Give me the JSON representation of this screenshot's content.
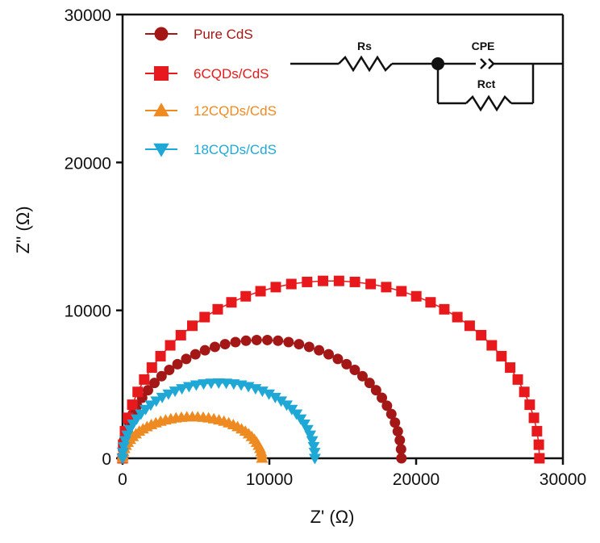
{
  "chart_data": {
    "type": "scatter",
    "title": "",
    "xlabel": "Z' (Ω)",
    "ylabel": "Z'' (Ω)",
    "xlim": [
      0,
      30000
    ],
    "ylim": [
      0,
      30000
    ],
    "x_ticks": [
      "0",
      "10000",
      "20000",
      "30000"
    ],
    "y_ticks": [
      "0",
      "10000",
      "20000",
      "30000"
    ],
    "grid": false,
    "legend_position": "top-left",
    "series": [
      {
        "name": "Pure CdS",
        "color": "#a31717",
        "marker": "circle",
        "semicircle": {
          "start": 0,
          "end": 19000,
          "peak": 8000
        },
        "points_count": 41
      },
      {
        "name": "6CQDs/CdS",
        "color": "#e8191c",
        "marker": "square",
        "semicircle": {
          "start": 0,
          "end": 28400,
          "peak": 12000
        },
        "points_count": 41
      },
      {
        "name": "12CQDs/CdS",
        "color": "#ee8a22",
        "marker": "triangle-up",
        "semicircle": {
          "start": 0,
          "end": 9500,
          "peak": 2800
        },
        "points_count": 40
      },
      {
        "name": "18CQDs/CdS",
        "color": "#1fa8d6",
        "marker": "triangle-down",
        "semicircle": {
          "start": 0,
          "end": 13100,
          "peak": 5100
        },
        "points_count": 40
      }
    ],
    "inset_circuit": {
      "labels": [
        "Rs",
        "CPE",
        "Rct"
      ]
    }
  }
}
